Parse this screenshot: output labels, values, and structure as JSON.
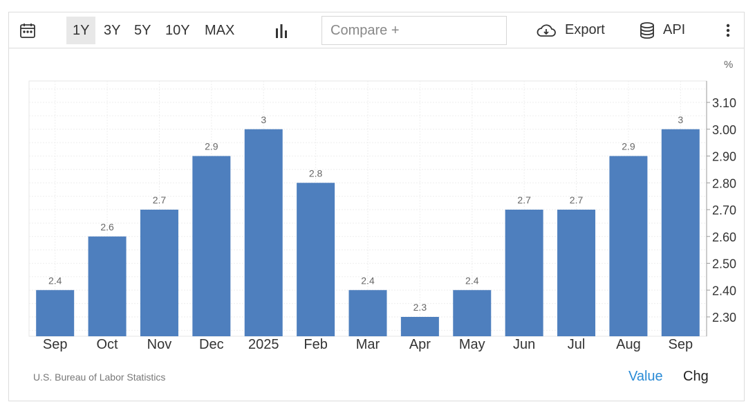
{
  "toolbar": {
    "calendar_icon": "calendar-icon",
    "ranges": [
      "1Y",
      "3Y",
      "5Y",
      "10Y",
      "MAX"
    ],
    "active_range": "1Y",
    "chart_type_icon": "bar-chart-icon",
    "compare_placeholder": "Compare +",
    "export_label": "Export",
    "export_icon": "cloud-download-icon",
    "api_label": "API",
    "api_icon": "database-icon",
    "more_icon": "vertical-dots-icon"
  },
  "footer": {
    "source": "U.S. Bureau of Labor Statistics",
    "tab_value": "Value",
    "tab_chg": "Chg"
  },
  "colors": {
    "bar": "#4e7fbe",
    "active_tab": "#2a8bd6"
  },
  "chart_data": {
    "type": "bar",
    "unit": "%",
    "categories": [
      "Sep",
      "Oct",
      "Nov",
      "Dec",
      "2025",
      "Feb",
      "Mar",
      "Apr",
      "May",
      "Jun",
      "Jul",
      "Aug",
      "Sep"
    ],
    "values": [
      2.4,
      2.6,
      2.7,
      2.9,
      3,
      2.8,
      2.4,
      2.3,
      2.4,
      2.7,
      2.7,
      2.9,
      3
    ],
    "value_labels": [
      "2.4",
      "2.6",
      "2.7",
      "2.9",
      "3",
      "2.8",
      "2.4",
      "2.3",
      "2.4",
      "2.7",
      "2.7",
      "2.9",
      "3"
    ],
    "yticks": [
      2.3,
      2.4,
      2.5,
      2.6,
      2.7,
      2.8,
      2.9,
      3.0,
      3.1
    ],
    "ytick_labels": [
      "2.30",
      "2.40",
      "2.50",
      "2.60",
      "2.70",
      "2.80",
      "2.90",
      "3.00",
      "3.10"
    ],
    "ylim": [
      2.23,
      3.19
    ],
    "y_axis_position": "right",
    "grid": true
  }
}
